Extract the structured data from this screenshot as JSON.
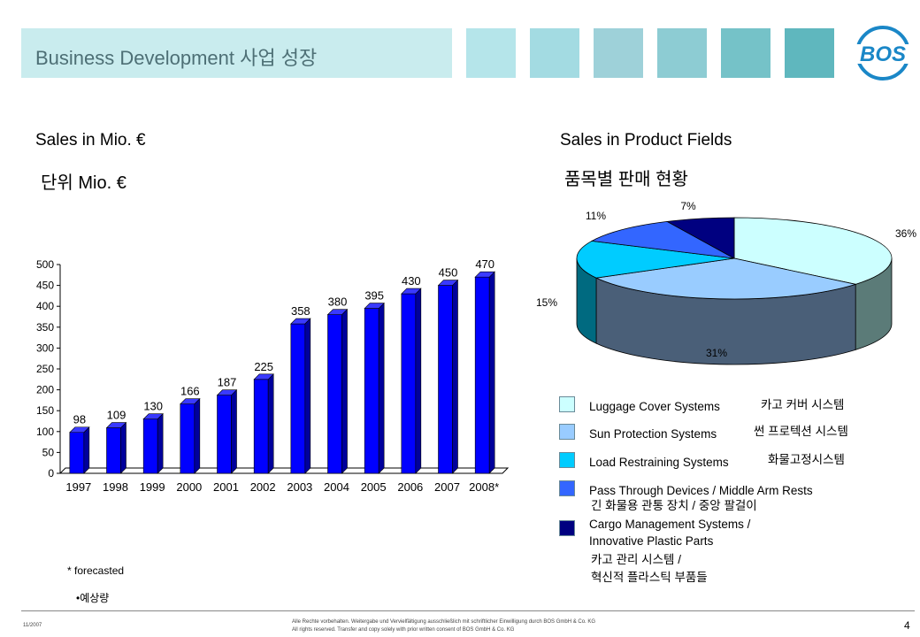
{
  "header": {
    "title": "Business Development   사업 성장",
    "logo_text": "BOS",
    "deco_colors": [
      "#c9ecee",
      "#b5e5ea",
      "#a3dbe2",
      "#9ed1d9",
      "#85cbd0",
      "#67b9c0"
    ]
  },
  "left": {
    "heading": "Sales in Mio. €",
    "heading_ko": "단위 Mio. €",
    "footnote": "* forecasted",
    "footnote_ko": "•예상량"
  },
  "right": {
    "heading": "Sales in Product Fields",
    "heading_ko": "품목별 판매 현황"
  },
  "chart_data": [
    {
      "type": "bar",
      "categories": [
        "1997",
        "1998",
        "1999",
        "2000",
        "2001",
        "2002",
        "2003",
        "2004",
        "2005",
        "2006",
        "2007",
        "2008*"
      ],
      "values": [
        98,
        109,
        130,
        166,
        187,
        225,
        358,
        380,
        395,
        430,
        450,
        470
      ],
      "ylim": [
        0,
        500
      ],
      "yticks": [
        0,
        50,
        100,
        150,
        200,
        250,
        300,
        350,
        400,
        450,
        500
      ],
      "bar_color": "#0000ff",
      "grid": false
    },
    {
      "type": "pie",
      "slices": [
        {
          "name": "Luggage Cover Systems",
          "name_ko": "카고 커버 시스템",
          "value": 36,
          "label": "36%",
          "color": "#ccffff"
        },
        {
          "name": "Sun Protection Systems",
          "name_ko": "썬 프로텍션 시스템",
          "value": 31,
          "label": "31%",
          "color": "#99ccff"
        },
        {
          "name": "Load Restraining Systems",
          "name_ko": "화물고정시스템",
          "value": 15,
          "label": "15%",
          "color": "#00ccff"
        },
        {
          "name": "Pass Through Devices / Middle Arm Rests",
          "name_ko": "긴 화물용 관통 장치 / 중앙 팔걸이",
          "value": 11,
          "label": "11%",
          "color": "#3366ff"
        },
        {
          "name": "Cargo Management Systems / Innovative Plastic Parts",
          "name_lines": [
            "Cargo Management Systems /",
            "Innovative Plastic Parts"
          ],
          "name_ko": "카고 관리 시스템 / 혁신적 플라스틱 부품들",
          "name_ko_lines": [
            "카고 관리 시스템 /",
            "혁신적 플라스틱 부품들"
          ],
          "value": 7,
          "label": "7%",
          "color": "#000080"
        }
      ],
      "legend_placement": "bottom"
    }
  ],
  "footer": {
    "date": "11/2007",
    "rights_de": "Alle Rechte vorbehalten. Weitergabe und Vervielfältigung ausschließlich mit schriftlicher Einwilligung durch BOS GmbH & Co. KG",
    "rights_en": "All rights reserved. Transfer and copy solely with prior written consent of BOS GmbH & Co. KG",
    "page": "4"
  }
}
